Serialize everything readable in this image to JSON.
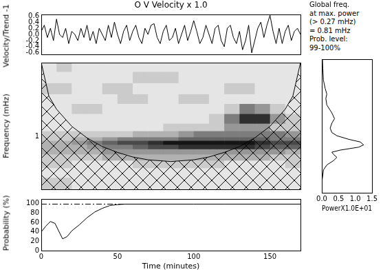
{
  "chart_data": [
    {
      "type": "line",
      "title": "O V Velocity x 1.0",
      "y_label": "Velocity/Trend -1",
      "color": "#000000",
      "grid": false,
      "tick_labels": "y",
      "x": [
        0,
        2,
        4,
        6,
        8,
        10,
        12,
        14,
        16,
        18,
        20,
        22,
        24,
        26,
        28,
        30,
        32,
        34,
        36,
        38,
        40,
        42,
        44,
        46,
        48,
        50,
        52,
        54,
        56,
        58,
        60,
        62,
        64,
        66,
        68,
        70,
        72,
        74,
        76,
        78,
        80,
        82,
        84,
        86,
        88,
        90,
        92,
        94,
        96,
        98,
        100,
        102,
        104,
        106,
        108,
        110,
        112,
        114,
        116,
        118,
        120,
        122,
        124,
        126,
        128,
        130,
        132,
        134,
        136,
        138,
        140,
        142,
        144,
        146,
        148,
        150,
        152,
        154,
        156,
        158,
        160,
        162,
        164,
        166,
        168,
        170
      ],
      "values": [
        0.1,
        0.3,
        -0.1,
        0.2,
        -0.2,
        0.5,
        0,
        -0.1,
        0.2,
        -0.3,
        0.1,
        0,
        -0.2,
        0.2,
        -0.1,
        0.3,
        -0.2,
        0.1,
        -0.3,
        0.2,
        0,
        -0.2,
        0.3,
        -0.1,
        0.4,
        0,
        -0.3,
        0.1,
        0.3,
        -0.2,
        0.1,
        0.3,
        -0.1,
        -0.3,
        0.2,
        0,
        0.3,
        0.35,
        -0.1,
        -0.3,
        0.1,
        0.3,
        -0.2,
        -0.1,
        0.2,
        -0.3,
        0,
        0.3,
        -0.2,
        0.1,
        0.45,
        0.1,
        -0.3,
        -0.1,
        0.3,
        0,
        -0.3,
        0.2,
        0.3,
        -0.2,
        -0.4,
        0.2,
        0.3,
        -0.1,
        -0.3,
        0.1,
        -0.5,
        -0.2,
        0.3,
        -0.6,
        -0.2,
        0.2,
        0.4,
        -0.1,
        0.3,
        0.62,
        0.1,
        -0.3,
        0.2,
        -0.3,
        0.1,
        0.3,
        -0.2,
        0.1,
        0.2,
        0
      ],
      "xlim": [
        0,
        170
      ],
      "ylim": [
        -0.65,
        0.65
      ],
      "yticks": [
        -0.6,
        -0.4,
        -0.2,
        {
          "value": 0,
          "label": "0.0"
        },
        0.2,
        0.4,
        0.6
      ]
    },
    {
      "type": "heatmap",
      "y_label": "Frequency (mHz)",
      "grid": false,
      "tick_labels": "y",
      "log": "y",
      "xlim": [
        0,
        170
      ],
      "ylim": [
        0.21,
        9.1
      ],
      "yticks": [
        1
      ],
      "x_edges": [
        0,
        10,
        20,
        30,
        40,
        50,
        60,
        70,
        80,
        90,
        100,
        110,
        120,
        130,
        140,
        150,
        160,
        170
      ],
      "y_edges": [
        0.21,
        0.3,
        0.4,
        0.5,
        0.6,
        0.7,
        0.8,
        0.9,
        1.0,
        1.2,
        1.5,
        2.0,
        2.7,
        3.6,
        5,
        7,
        9.1
      ],
      "cells": [
        [
          2,
          2,
          1,
          1,
          1,
          1,
          1,
          1,
          1,
          1,
          1,
          1,
          1,
          1,
          1,
          1,
          1
        ],
        [
          1,
          1,
          1,
          1,
          1,
          1,
          1,
          1,
          1,
          1,
          1,
          1,
          1,
          1,
          1,
          1,
          1
        ],
        [
          2,
          2,
          1,
          1,
          1,
          1,
          2,
          2,
          2,
          2,
          2,
          2,
          1,
          1,
          1,
          1,
          2
        ],
        [
          2,
          2,
          2,
          2,
          3,
          3,
          3,
          3,
          3,
          3,
          3,
          3,
          3,
          3,
          3,
          2,
          2
        ],
        [
          3,
          3,
          3,
          3,
          4,
          4,
          4,
          4,
          4,
          4,
          4,
          4,
          4,
          4,
          4,
          4,
          3
        ],
        [
          3,
          3,
          3,
          4,
          5,
          5,
          6,
          7,
          7,
          8,
          8,
          8,
          8,
          8,
          7,
          6,
          6
        ],
        [
          3,
          3,
          4,
          5,
          6,
          7,
          7,
          8,
          9,
          9,
          9,
          9,
          9,
          9,
          8,
          7,
          7
        ],
        [
          2,
          2,
          3,
          3,
          4,
          5,
          5,
          5,
          5,
          6,
          6,
          6,
          6,
          6,
          6,
          5,
          5
        ],
        [
          2,
          2,
          2,
          2,
          2,
          2,
          3,
          3,
          3,
          4,
          5,
          5,
          5,
          5,
          5,
          5,
          4
        ],
        [
          1,
          1,
          1,
          1,
          1,
          1,
          1,
          1,
          2,
          2,
          2,
          2,
          4,
          4,
          4,
          2,
          2
        ],
        [
          1,
          1,
          1,
          1,
          1,
          1,
          1,
          1,
          1,
          1,
          1,
          2,
          5,
          8,
          8,
          4,
          2
        ],
        [
          1,
          1,
          2,
          2,
          1,
          1,
          1,
          1,
          1,
          1,
          1,
          1,
          2,
          5,
          4,
          2,
          1
        ],
        [
          1,
          1,
          1,
          1,
          1,
          2,
          2,
          1,
          1,
          2,
          2,
          1,
          1,
          1,
          1,
          1,
          1
        ],
        [
          2,
          2,
          1,
          1,
          2,
          2,
          1,
          1,
          1,
          1,
          1,
          1,
          2,
          2,
          1,
          1,
          1
        ],
        [
          1,
          1,
          1,
          1,
          1,
          1,
          2,
          2,
          2,
          1,
          1,
          1,
          1,
          1,
          1,
          1,
          1
        ],
        [
          1,
          2,
          1,
          1,
          1,
          1,
          1,
          1,
          1,
          1,
          1,
          1,
          1,
          1,
          1,
          1,
          1
        ]
      ],
      "cone_of_influence": {
        "x": [
          0,
          5,
          10,
          20,
          30,
          40,
          50,
          60,
          70,
          85,
          100,
          110,
          120,
          130,
          140,
          150,
          160,
          165,
          170
        ],
        "y": [
          9.1,
          3.37,
          2.28,
          1.37,
          0.97,
          0.75,
          0.63,
          0.55,
          0.505,
          0.48,
          0.505,
          0.55,
          0.63,
          0.75,
          0.97,
          1.37,
          2.28,
          3.37,
          9.1
        ]
      }
    },
    {
      "type": "line",
      "x_label": "PowerX1.0E+01",
      "color": "#000000",
      "grid": false,
      "tick_labels": "x",
      "log": "y",
      "annotations": [
        "Global freq.",
        "at max. power",
        "(> 0.27 mHz)",
        "= 0.81 mHz",
        "Prob. level:",
        "99-100%"
      ],
      "x": [
        0.02,
        0.03,
        0.05,
        0.1,
        0.15,
        0.12,
        0.15,
        0.3,
        0.38,
        0.3,
        0.25,
        0.3,
        0.45,
        0.8,
        1.15,
        1.25,
        1.1,
        0.55,
        0.3,
        0.35,
        0.45,
        0.35,
        0.15,
        0.05,
        0.01,
        0
      ],
      "y": [
        9.1,
        7,
        5,
        4,
        3.4,
        3,
        2.5,
        2,
        1.7,
        1.5,
        1.3,
        1.15,
        1.05,
        0.95,
        0.88,
        0.81,
        0.76,
        0.7,
        0.66,
        0.62,
        0.57,
        0.52,
        0.46,
        0.4,
        0.3,
        0.21
      ],
      "xlim": [
        0,
        1.5
      ],
      "ylim": [
        0.21,
        9.1
      ],
      "xticks": [
        {
          "value": 0,
          "label": "0.0"
        },
        0.5,
        {
          "value": 1,
          "label": "1.0"
        },
        1.5
      ]
    },
    {
      "type": "line",
      "x_label": "Time (minutes)",
      "y_label": "Probability (%)",
      "color": "#000000",
      "grid": false,
      "x": [
        0,
        3,
        6,
        9,
        12,
        14,
        17,
        20,
        25,
        30,
        35,
        40,
        45,
        50,
        55,
        60,
        80,
        100,
        120,
        140,
        160,
        170
      ],
      "values": [
        40,
        52,
        62,
        58,
        38,
        25,
        30,
        42,
        55,
        70,
        82,
        90,
        96,
        98,
        99,
        99,
        99,
        99,
        99,
        99,
        99,
        99
      ],
      "reference_line": 99,
      "xlim": [
        0,
        170
      ],
      "ylim": [
        0,
        110
      ],
      "xticks": [
        0,
        50,
        100,
        150
      ],
      "yticks": [
        0,
        20,
        40,
        60,
        80,
        100
      ]
    }
  ]
}
